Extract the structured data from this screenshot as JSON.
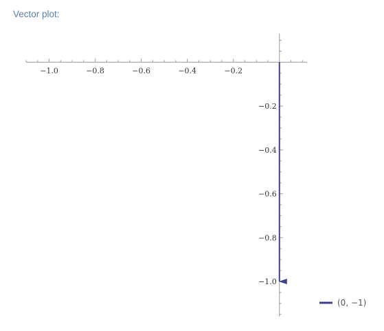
{
  "pod": {
    "title": "Vector plot:"
  },
  "chart_data": {
    "type": "vector",
    "xlim": [
      -1.1,
      0.12
    ],
    "ylim": [
      -1.16,
      0.13
    ],
    "x_ticks": [
      -1.0,
      -0.8,
      -0.6,
      -0.4,
      -0.2
    ],
    "x_tick_labels": [
      "−1.0",
      "−0.8",
      "−0.6",
      "−0.4",
      "−0.2"
    ],
    "y_ticks": [
      -0.2,
      -0.4,
      -0.6,
      -0.8,
      -1.0
    ],
    "y_tick_labels": [
      "−0.2",
      "−0.4",
      "−0.6",
      "−0.8",
      "−1.0"
    ],
    "minor_step": 0.05,
    "grid": false,
    "legend_position": "bottom-right",
    "series": [
      {
        "name": "(0, −1)",
        "from": [
          0,
          0
        ],
        "to": [
          0,
          -1
        ],
        "color": "#3f3f8e"
      }
    ]
  }
}
